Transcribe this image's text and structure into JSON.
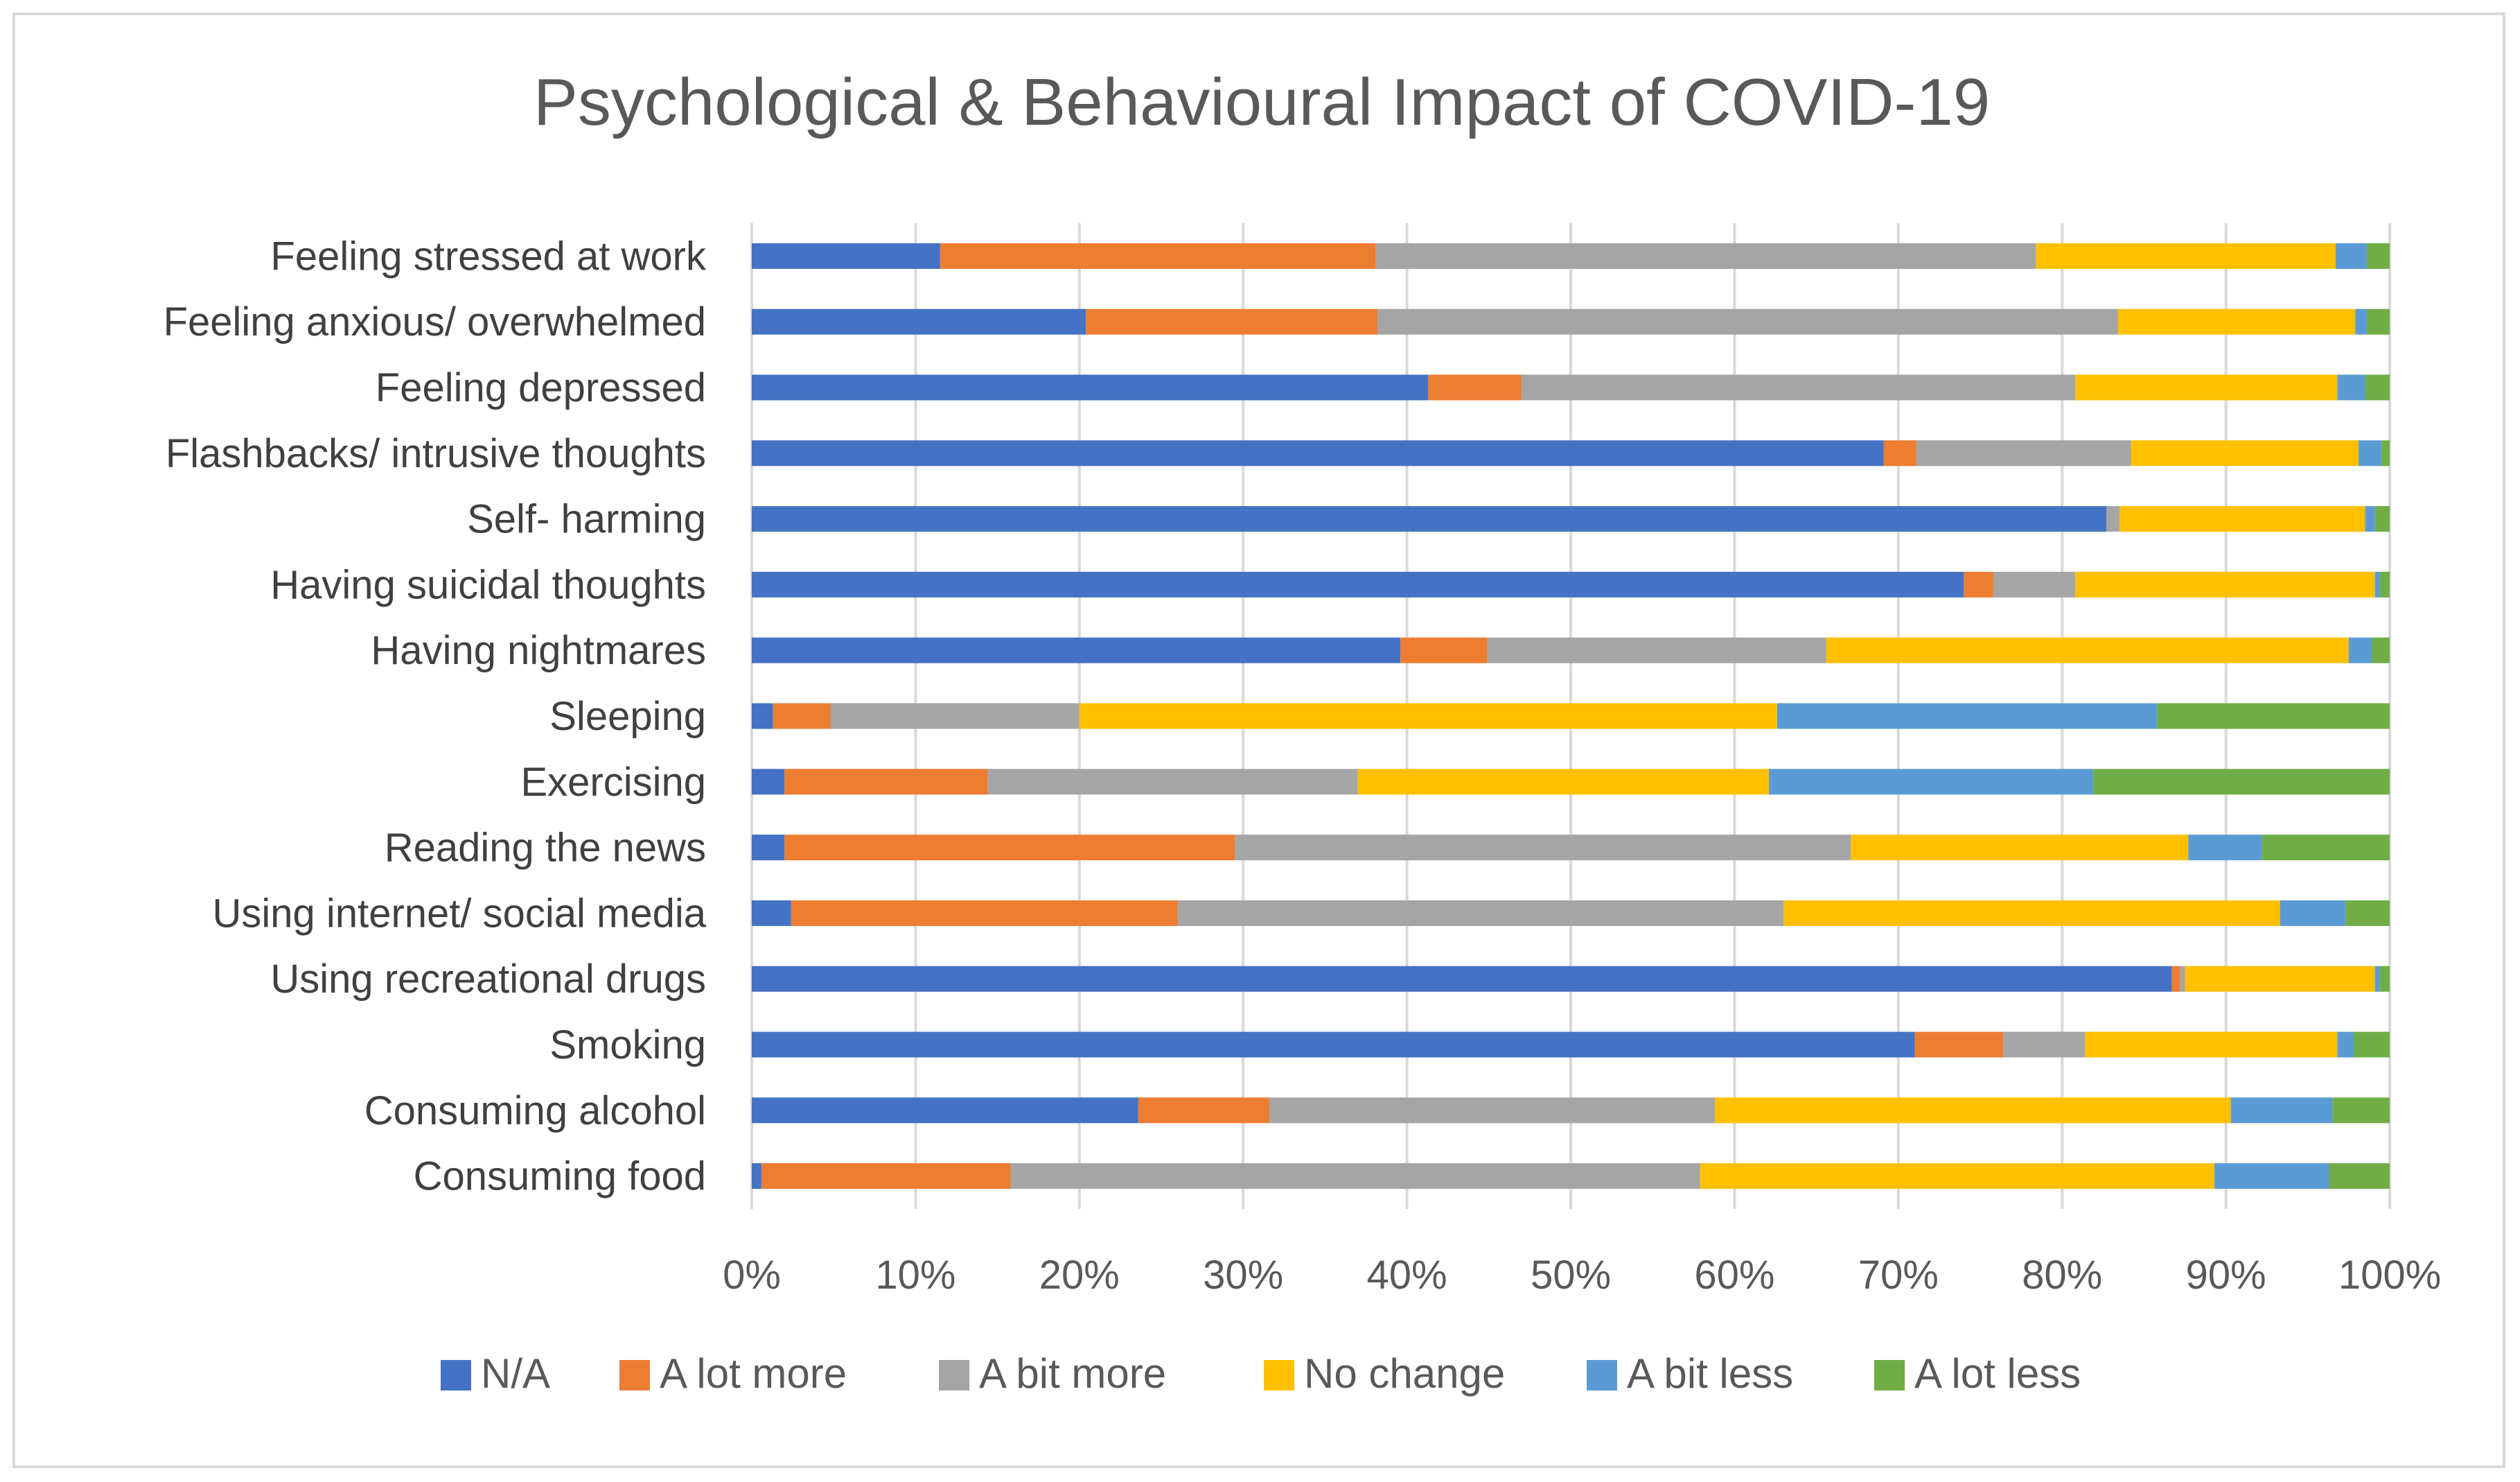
{
  "chart_data": {
    "type": "bar",
    "orientation": "horizontal",
    "stacked": "percent",
    "title": "Psychological & Behavioural Impact of COVID-19",
    "xlabel": "",
    "ylabel": "",
    "xlim": [
      0,
      100
    ],
    "x_ticks": [
      "0%",
      "10%",
      "20%",
      "30%",
      "40%",
      "50%",
      "60%",
      "70%",
      "80%",
      "90%",
      "100%"
    ],
    "grid": true,
    "legend_position": "bottom",
    "categories": [
      "Feeling stressed at work",
      "Feeling anxious/ overwhelmed",
      "Feeling depressed",
      "Flashbacks/ intrusive thoughts",
      "Self- harming",
      "Having suicidal thoughts",
      "Having nightmares",
      "Sleeping",
      "Exercising",
      "Reading the news",
      "Using internet/ social media",
      "Using recreational drugs",
      "Smoking",
      "Consuming alcohol",
      "Consuming food"
    ],
    "series": [
      {
        "name": "N/A",
        "color": "#4472c4",
        "values": [
          11.5,
          20.4,
          41.3,
          69.1,
          82.7,
          74.0,
          39.6,
          1.3,
          2.0,
          2.0,
          2.4,
          86.7,
          71.0,
          23.6,
          0.6
        ]
      },
      {
        "name": "A lot more",
        "color": "#ed7d31",
        "values": [
          26.6,
          17.8,
          5.7,
          2.0,
          0.0,
          1.8,
          5.3,
          3.5,
          12.4,
          27.5,
          23.6,
          0.5,
          5.4,
          8.0,
          15.2
        ]
      },
      {
        "name": "A bit more",
        "color": "#a5a5a5",
        "values": [
          40.3,
          45.2,
          33.8,
          13.1,
          0.8,
          5.0,
          20.7,
          15.2,
          22.6,
          37.6,
          37.0,
          0.3,
          5.0,
          27.2,
          42.1
        ]
      },
      {
        "name": "No change",
        "color": "#ffc000",
        "values": [
          18.3,
          14.5,
          16.0,
          13.9,
          15.0,
          18.3,
          31.9,
          42.6,
          25.1,
          20.6,
          30.3,
          11.6,
          15.4,
          31.5,
          31.4
        ]
      },
      {
        "name": "A bit less",
        "color": "#5b9bd5",
        "values": [
          1.9,
          0.7,
          1.7,
          1.4,
          0.6,
          0.3,
          1.4,
          23.2,
          19.8,
          4.5,
          4.0,
          0.3,
          1.0,
          6.2,
          7.0
        ]
      },
      {
        "name": "A lot less",
        "color": "#70ad47",
        "values": [
          1.4,
          1.4,
          1.5,
          0.5,
          0.9,
          0.6,
          1.1,
          14.2,
          18.1,
          7.8,
          2.7,
          0.6,
          2.2,
          3.5,
          3.7
        ]
      }
    ]
  }
}
